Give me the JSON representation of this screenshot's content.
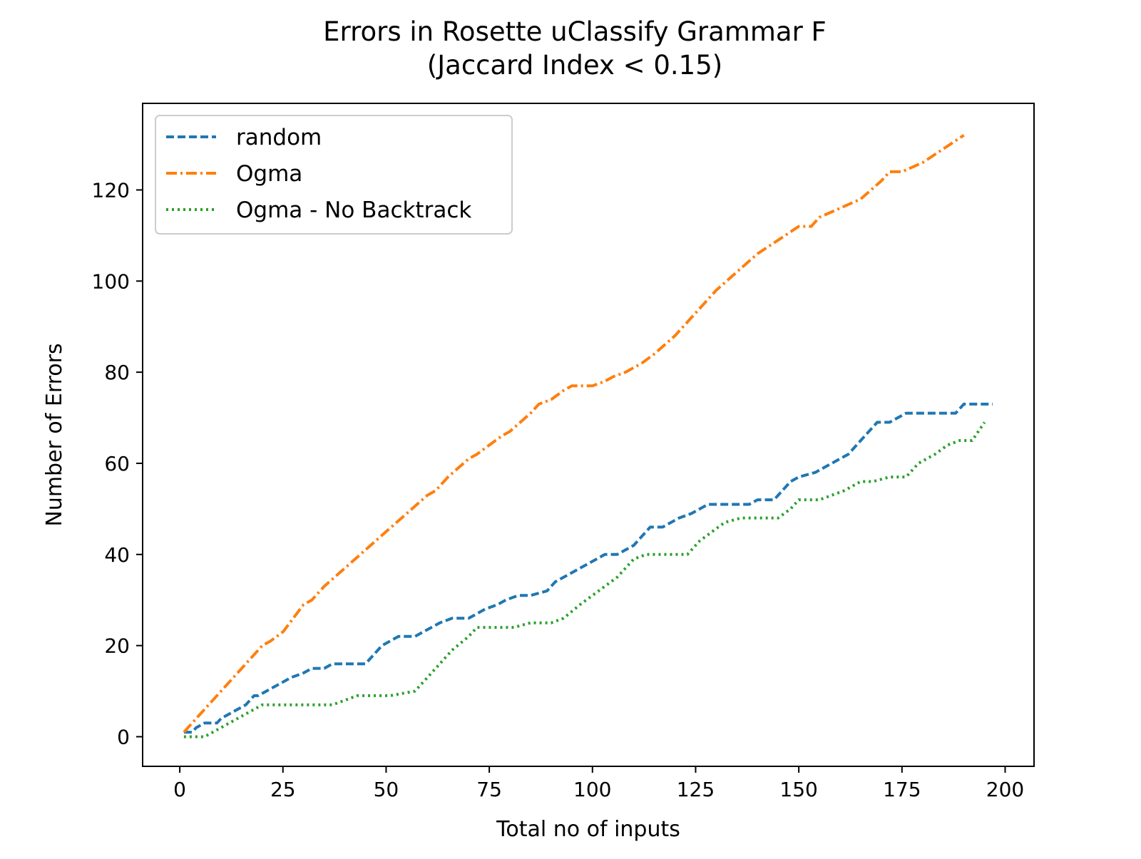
{
  "chart_data": {
    "type": "line",
    "title": "Errors in Rosette uClassify Grammar F",
    "subtitle": "(Jaccard Index < 0.15)",
    "xlabel": "Total no of inputs",
    "ylabel": "Number of Errors",
    "xlim": [
      -9,
      207
    ],
    "ylim": [
      -6.5,
      139
    ],
    "xticks": [
      0,
      25,
      50,
      75,
      100,
      125,
      150,
      175,
      200
    ],
    "yticks": [
      0,
      20,
      40,
      60,
      80,
      100,
      120
    ],
    "xtick_labels": [
      "0",
      "25",
      "50",
      "75",
      "100",
      "125",
      "150",
      "175",
      "200"
    ],
    "ytick_labels": [
      "0",
      "20",
      "40",
      "60",
      "80",
      "100",
      "120"
    ],
    "grid": false,
    "legend_position": "top-left",
    "series": [
      {
        "name": "random",
        "color": "#1f77b4",
        "linestyle": "dashed",
        "x": [
          1,
          3,
          4,
          6,
          7,
          9,
          10,
          12,
          14,
          16,
          18,
          19,
          21,
          23,
          25,
          27,
          30,
          32,
          35,
          37,
          39,
          45,
          47,
          49,
          51,
          53,
          57,
          59,
          61,
          63,
          66,
          70,
          72,
          74,
          77,
          79,
          82,
          85,
          89,
          91,
          93,
          95,
          97,
          99,
          101,
          103,
          106,
          108,
          110,
          112,
          114,
          117,
          119,
          121,
          124,
          126,
          128,
          130,
          138,
          140,
          144,
          146,
          148,
          150,
          154,
          156,
          158,
          162,
          165,
          167,
          169,
          172,
          174,
          176,
          180,
          188,
          190,
          197
        ],
        "y": [
          1,
          1,
          2,
          3,
          3,
          3,
          4,
          5,
          6,
          7,
          9,
          9,
          10,
          11,
          12,
          13,
          14,
          15,
          15,
          16,
          16,
          16,
          18,
          20,
          21,
          22,
          22,
          23,
          24,
          25,
          26,
          26,
          27,
          28,
          29,
          30,
          31,
          31,
          32,
          34,
          35,
          36,
          37,
          38,
          39,
          40,
          40,
          41,
          42,
          44,
          46,
          46,
          47,
          48,
          49,
          50,
          51,
          51,
          51,
          52,
          52,
          54,
          56,
          57,
          58,
          59,
          60,
          62,
          65,
          67,
          69,
          69,
          70,
          71,
          71,
          71,
          73,
          73
        ]
      },
      {
        "name": "Ogma",
        "color": "#ff7f0e",
        "linestyle": "dashdot",
        "x": [
          1,
          5,
          10,
          15,
          20,
          22,
          25,
          30,
          32,
          35,
          40,
          45,
          50,
          55,
          60,
          62,
          65,
          70,
          72,
          75,
          78,
          80,
          85,
          87,
          90,
          93,
          95,
          100,
          103,
          105,
          108,
          110,
          112,
          115,
          120,
          125,
          130,
          135,
          140,
          145,
          150,
          153,
          155,
          160,
          165,
          170,
          172,
          175,
          180,
          185,
          190
        ],
        "y": [
          1,
          5,
          10,
          15,
          20,
          21,
          23,
          29,
          30,
          33,
          37,
          41,
          45,
          49,
          53,
          54,
          57,
          61,
          62,
          64,
          66,
          67,
          71,
          73,
          74,
          76,
          77,
          77,
          78,
          79,
          80,
          81,
          82,
          84,
          88,
          93,
          98,
          102,
          106,
          109,
          112,
          112,
          114,
          116,
          118,
          122,
          124,
          124,
          126,
          129,
          132
        ]
      },
      {
        "name": "Ogma - No Backtrack",
        "color": "#2ca02c",
        "linestyle": "dotted",
        "x": [
          1,
          6,
          8,
          10,
          12,
          14,
          16,
          18,
          20,
          26,
          33,
          37,
          40,
          43,
          46,
          51,
          57,
          60,
          63,
          66,
          70,
          72,
          78,
          81,
          85,
          90,
          93,
          97,
          100,
          103,
          106,
          108,
          110,
          113,
          118,
          123,
          126,
          129,
          132,
          136,
          140,
          145,
          148,
          150,
          155,
          158,
          161,
          165,
          168,
          172,
          176,
          179,
          183,
          186,
          189,
          192,
          195
        ],
        "y": [
          0,
          0,
          1,
          2,
          3,
          4,
          5,
          6,
          7,
          7,
          7,
          7,
          8,
          9,
          9,
          9,
          10,
          13,
          16,
          19,
          22,
          24,
          24,
          24,
          25,
          25,
          26,
          29,
          31,
          33,
          35,
          37,
          39,
          40,
          40,
          40,
          43,
          45,
          47,
          48,
          48,
          48,
          50,
          52,
          52,
          53,
          54,
          56,
          56,
          57,
          57,
          60,
          62,
          64,
          65,
          65,
          69
        ]
      }
    ]
  }
}
